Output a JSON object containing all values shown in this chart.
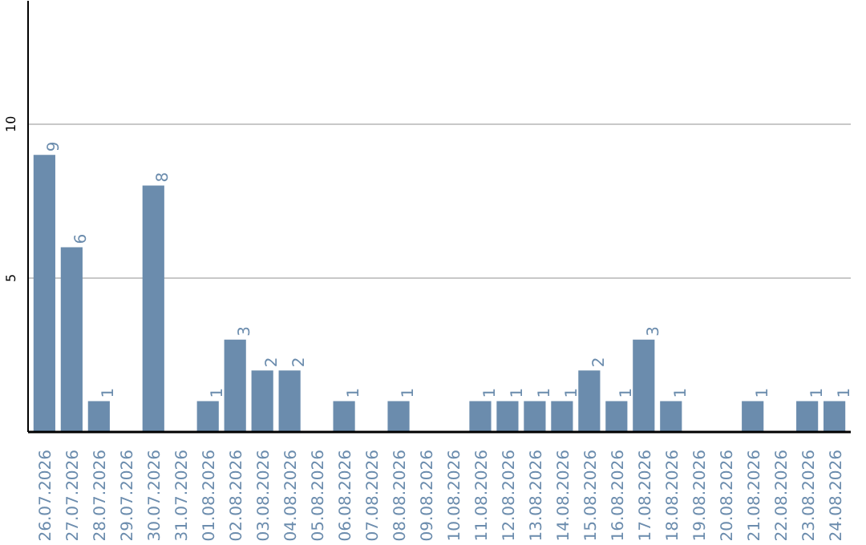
{
  "chart_data": {
    "type": "bar",
    "categories": [
      "26.07.2026",
      "27.07.2026",
      "28.07.2026",
      "29.07.2026",
      "30.07.2026",
      "31.07.2026",
      "01.08.2026",
      "02.08.2026",
      "03.08.2026",
      "04.08.2026",
      "05.08.2026",
      "06.08.2026",
      "07.08.2026",
      "08.08.2026",
      "09.08.2026",
      "10.08.2026",
      "11.08.2026",
      "12.08.2026",
      "13.08.2026",
      "14.08.2026",
      "15.08.2026",
      "16.08.2026",
      "17.08.2026",
      "18.08.2026",
      "19.08.2026",
      "20.08.2026",
      "21.08.2026",
      "22.08.2026",
      "23.08.2026",
      "24.08.2026"
    ],
    "values": [
      9,
      6,
      1,
      0,
      8,
      0,
      1,
      3,
      2,
      2,
      0,
      1,
      0,
      1,
      0,
      0,
      1,
      1,
      1,
      1,
      2,
      1,
      3,
      1,
      0,
      0,
      1,
      0,
      1,
      1
    ],
    "value_labels": [
      "9",
      "6",
      "1",
      null,
      "8",
      null,
      "1",
      "3",
      "2",
      "2",
      null,
      "1",
      null,
      "1",
      null,
      null,
      "1",
      "1",
      "1",
      "1",
      "2",
      "1",
      "3",
      "1",
      null,
      null,
      "1",
      null,
      "1",
      "1"
    ],
    "color": "#6b8cad",
    "ylim": [
      0,
      14
    ],
    "yticks": [
      5,
      10
    ],
    "grid": "y"
  }
}
